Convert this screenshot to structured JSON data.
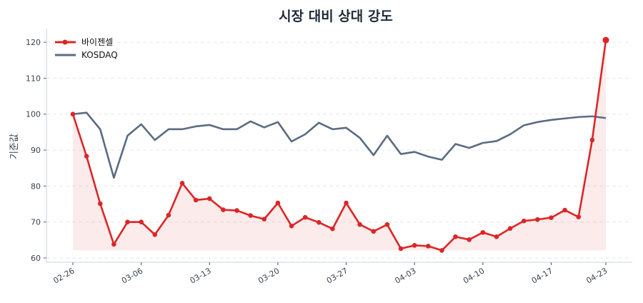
{
  "chart_data": {
    "type": "line",
    "title": "시장 대비 상대 강도",
    "xlabel": "",
    "ylabel": "기준값",
    "ylim": [
      58.8,
      123.8
    ],
    "yticks": [
      60,
      70,
      80,
      90,
      100,
      110,
      120
    ],
    "xtick_labels": [
      {
        "index": 0,
        "label": "02-26"
      },
      {
        "index": 5,
        "label": "03-06"
      },
      {
        "index": 10,
        "label": "03-13"
      },
      {
        "index": 15,
        "label": "03-20"
      },
      {
        "index": 20,
        "label": "03-27"
      },
      {
        "index": 25,
        "label": "04-03"
      },
      {
        "index": 30,
        "label": "04-10"
      },
      {
        "index": 35,
        "label": "04-17"
      },
      {
        "index": 39,
        "label": "04-23"
      }
    ],
    "grid": true,
    "legend_position": "top-left",
    "series": [
      {
        "name": "바이젠셀",
        "color": "#dc2626",
        "markers": true,
        "fill": true,
        "values": [
          100,
          88.3,
          75.1,
          63.8,
          70,
          70,
          66.5,
          71.9,
          80.8,
          76.1,
          76.5,
          73.4,
          73.2,
          71.8,
          70.8,
          75.3,
          68.9,
          71.3,
          69.9,
          68.1,
          75.3,
          69.3,
          67.4,
          69.3,
          62.6,
          63.5,
          63.3,
          62.1,
          65.9,
          65.1,
          67.1,
          65.9,
          68.2,
          70.3,
          70.7,
          71.2,
          73.3,
          71.4,
          92.8,
          120.6
        ]
      },
      {
        "name": "KOSDAQ",
        "color": "#5b6b82",
        "markers": false,
        "fill": false,
        "values": [
          100,
          100.4,
          95.8,
          82.3,
          94,
          97.2,
          92.8,
          95.8,
          95.8,
          96.6,
          97,
          95.8,
          95.8,
          98,
          96.3,
          97.8,
          92.4,
          94.4,
          97.6,
          95.8,
          96.2,
          93.4,
          88.6,
          94,
          88.9,
          89.5,
          88.2,
          87.3,
          91.7,
          90.6,
          92,
          92.5,
          94.4,
          96.9,
          97.8,
          98.4,
          98.8,
          99.2,
          99.4,
          98.9
        ]
      }
    ]
  }
}
